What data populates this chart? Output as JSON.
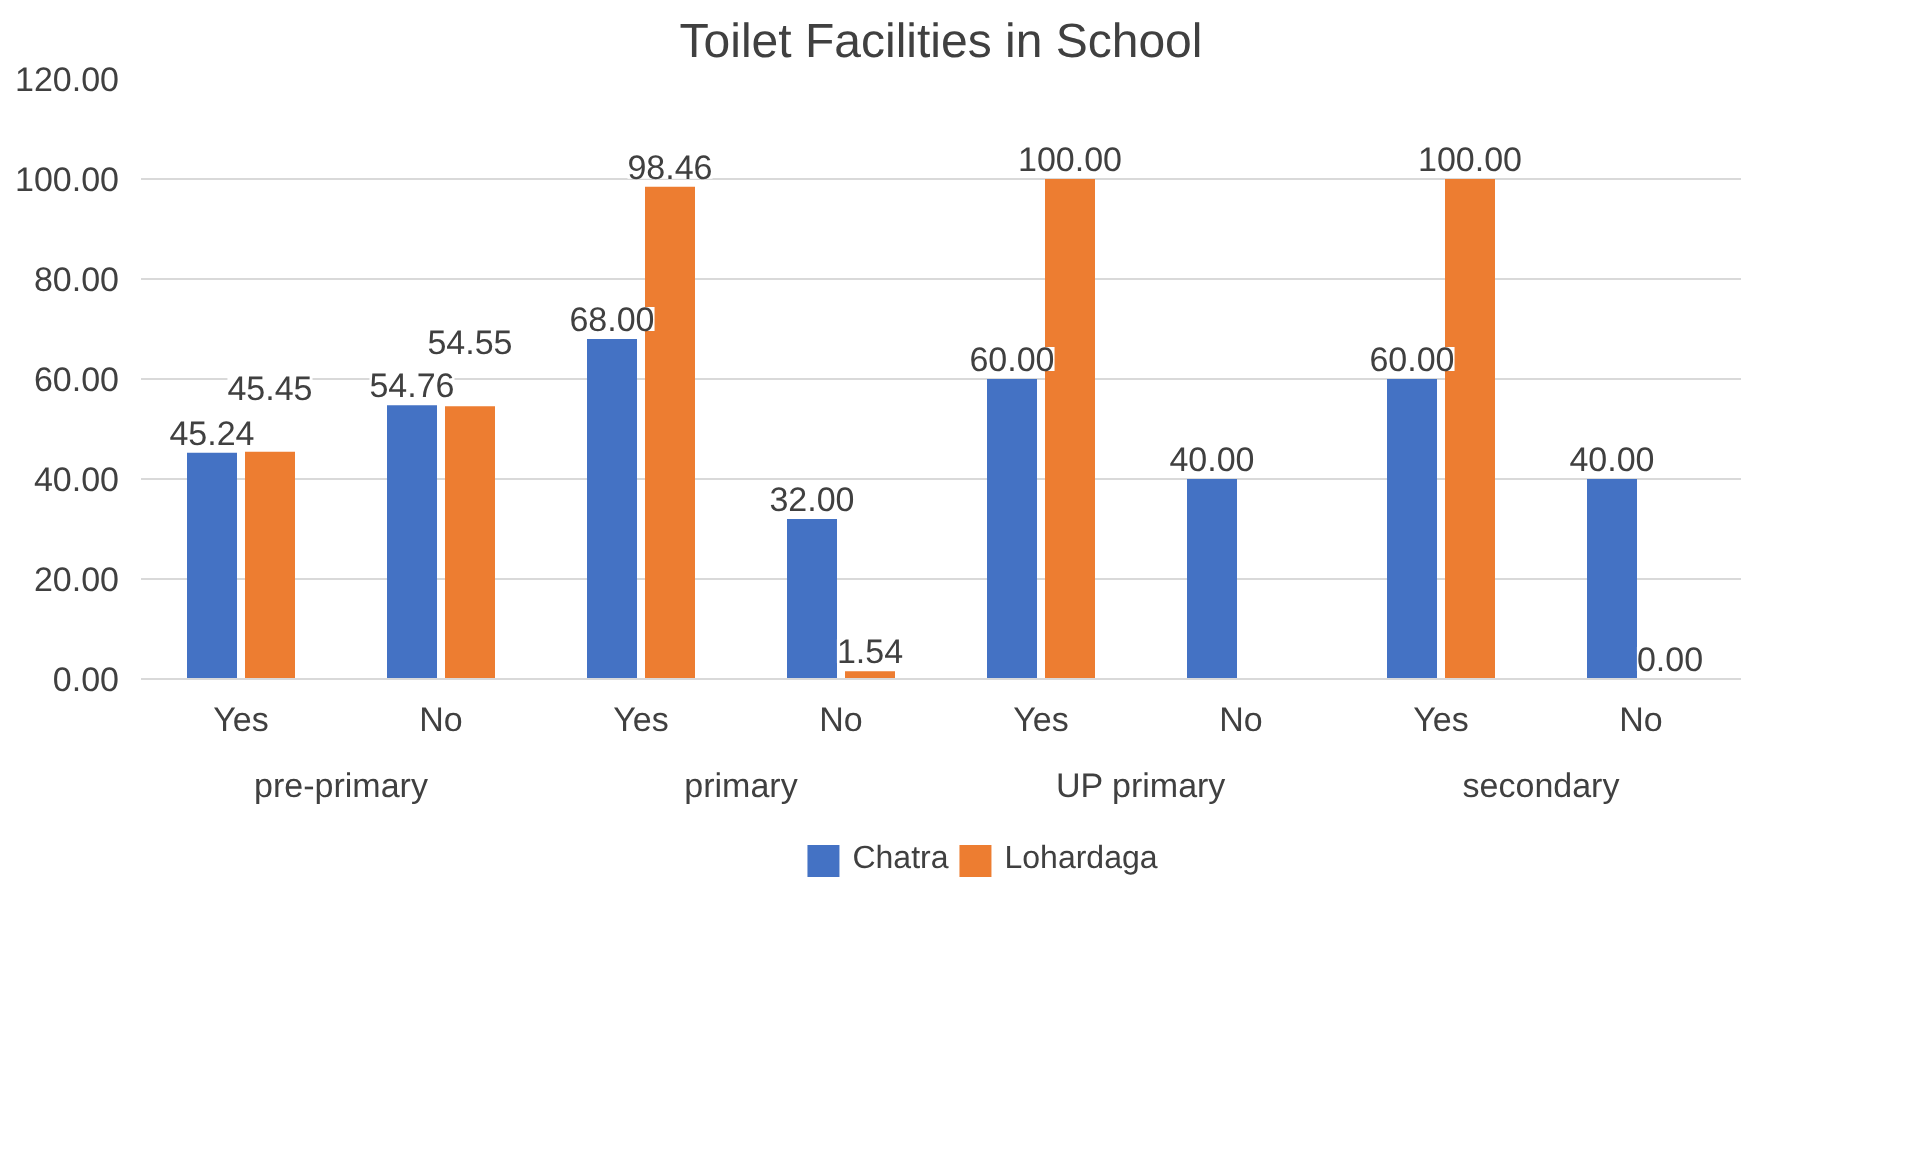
{
  "chart_data": {
    "type": "bar",
    "title": "Toilet Facilities in School",
    "categories": [
      "Yes",
      "No",
      "Yes",
      "No",
      "Yes",
      "No",
      "Yes",
      "No"
    ],
    "annotations": [
      "pre-primary",
      "primary",
      "UP primary",
      "secondary"
    ],
    "series": [
      {
        "name": "Chatra",
        "color": "#4472c4",
        "values": [
          45.24,
          54.76,
          68.0,
          32.0,
          60.0,
          40.0,
          60.0,
          40.0
        ],
        "value_labels": [
          "45.24",
          "54.76",
          "68.00",
          "32.00",
          "60.00",
          "40.00",
          "60.00",
          "40.00"
        ]
      },
      {
        "name": "Lohardaga",
        "color": "#ed7d31",
        "values": [
          45.45,
          54.55,
          98.46,
          1.54,
          100.0,
          null,
          100.0,
          0.0
        ],
        "value_labels": [
          "45.45",
          "54.55",
          "98.46",
          "1.54",
          "100.00",
          null,
          "100.00",
          "0.00"
        ]
      }
    ],
    "ylim": [
      0,
      120
    ],
    "yticks": [
      {
        "value": 0,
        "label": "0.00"
      },
      {
        "value": 20,
        "label": "20.00"
      },
      {
        "value": 40,
        "label": "40.00"
      },
      {
        "value": 60,
        "label": "60.00"
      },
      {
        "value": 80,
        "label": "80.00"
      },
      {
        "value": 100,
        "label": "100.00"
      },
      {
        "value": 120,
        "label": "120.00"
      }
    ],
    "grid": "y",
    "legend": "bottom"
  }
}
